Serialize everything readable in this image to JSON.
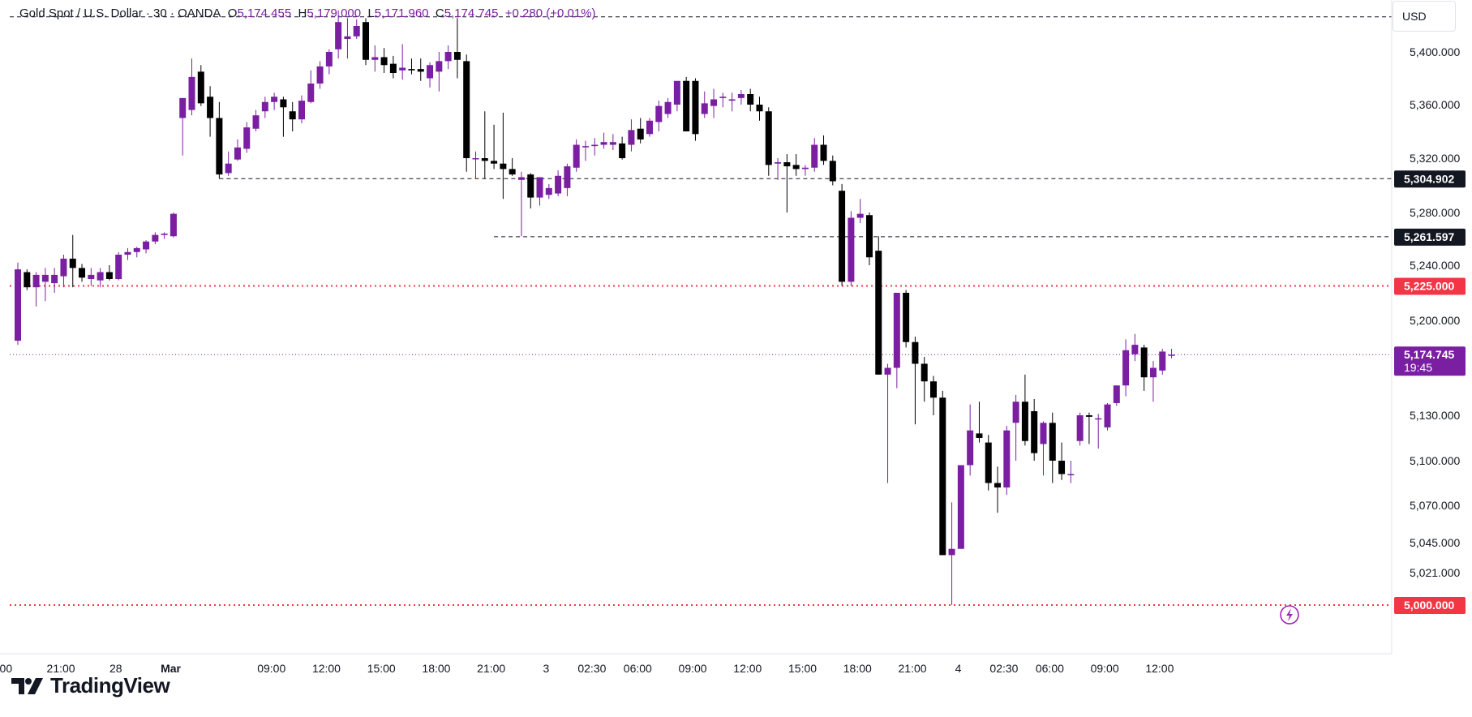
{
  "header": {
    "symbol": "Gold Spot / U.S. Dollar · 30 · OANDA",
    "open_label": "O",
    "open": "5,174.455",
    "high_label": "H",
    "high": "5,179.000",
    "low_label": "L",
    "low": "5,171.960",
    "close_label": "C",
    "close": "5,174.745",
    "change": "+0.280 (+0.01%)"
  },
  "currency_button": "USD",
  "brand": {
    "name": "TradingView"
  },
  "colors": {
    "up": "#7b1fa2",
    "down": "#000000",
    "alert_line": "#f23645",
    "current_price": "#7b1fa2",
    "axis_text": "#131722",
    "grid": "#e0e3eb"
  },
  "chart_data": {
    "type": "candlestick",
    "title": "Gold Spot / U.S. Dollar",
    "interval": "30",
    "source": "OANDA",
    "currency": "USD",
    "grid": false,
    "y_ticks": [
      {
        "value": 5400,
        "label": "5,400.000"
      },
      {
        "value": 5360,
        "label": "5,360.000"
      },
      {
        "value": 5320,
        "label": "5,320.000"
      },
      {
        "value": 5280,
        "label": "5,280.000"
      },
      {
        "value": 5240,
        "label": "5,240.000"
      },
      {
        "value": 5200,
        "label": "5,200.000"
      },
      {
        "value": 5130,
        "label": "5,130.000"
      },
      {
        "value": 5100,
        "label": "5,100.000"
      },
      {
        "value": 5070,
        "label": "5,070.000"
      },
      {
        "value": 5045,
        "label": "5,045.000"
      },
      {
        "value": 5021,
        "label": "5,021.000"
      }
    ],
    "x_ticks": [
      {
        "bar": -1.3,
        "label": "00",
        "bold": false
      },
      {
        "bar": 4.7,
        "label": "21:00",
        "bold": false
      },
      {
        "bar": 10.7,
        "label": "28",
        "bold": false
      },
      {
        "bar": 16.7,
        "label": "Mar",
        "bold": true
      },
      {
        "bar": 27.7,
        "label": "09:00",
        "bold": false
      },
      {
        "bar": 33.7,
        "label": "12:00",
        "bold": false
      },
      {
        "bar": 39.7,
        "label": "15:00",
        "bold": false
      },
      {
        "bar": 45.7,
        "label": "18:00",
        "bold": false
      },
      {
        "bar": 51.7,
        "label": "21:00",
        "bold": false
      },
      {
        "bar": 57.7,
        "label": "3",
        "bold": false
      },
      {
        "bar": 62.7,
        "label": "02:30",
        "bold": false
      },
      {
        "bar": 67.7,
        "label": "06:00",
        "bold": false
      },
      {
        "bar": 73.7,
        "label": "09:00",
        "bold": false
      },
      {
        "bar": 79.7,
        "label": "12:00",
        "bold": false
      },
      {
        "bar": 85.7,
        "label": "15:00",
        "bold": false
      },
      {
        "bar": 91.7,
        "label": "18:00",
        "bold": false
      },
      {
        "bar": 97.7,
        "label": "21:00",
        "bold": false
      },
      {
        "bar": 102.7,
        "label": "4",
        "bold": false
      },
      {
        "bar": 107.7,
        "label": "02:30",
        "bold": false
      },
      {
        "bar": 112.7,
        "label": "06:00",
        "bold": false
      },
      {
        "bar": 118.7,
        "label": "09:00",
        "bold": false
      },
      {
        "bar": 124.7,
        "label": "12:00",
        "bold": false
      }
    ],
    "price_labels": [
      {
        "value": 5304.902,
        "label": "5,304.902",
        "style": "dark"
      },
      {
        "value": 5261.597,
        "label": "5,261.597",
        "style": "dark"
      },
      {
        "value": 5225.0,
        "label": "5,225.000",
        "style": "alert"
      },
      {
        "value": 5174.745,
        "label": "5,174.745",
        "sub": "19:45",
        "style": "current"
      },
      {
        "value": 5000.0,
        "label": "5,000.000",
        "style": "alert"
      }
    ],
    "horizontal_lines": [
      {
        "value": 5427,
        "from_bar": -1,
        "style": "dashed"
      },
      {
        "value": 5304.902,
        "from_bar": 22,
        "style": "dashed"
      },
      {
        "value": 5261.597,
        "from_bar": 52,
        "style": "dashed"
      },
      {
        "value": 5225.0,
        "from_bar": -1,
        "style": "alert"
      },
      {
        "value": 5174.745,
        "from_bar": -1,
        "style": "current"
      },
      {
        "value": 5000.0,
        "from_bar": -1,
        "style": "alert"
      }
    ],
    "ohlc": [
      [
        5185,
        5242,
        5182,
        5237
      ],
      [
        5235,
        5237,
        5222,
        5224
      ],
      [
        5224,
        5235,
        5210,
        5233
      ],
      [
        5228,
        5238,
        5214,
        5233
      ],
      [
        5227,
        5238,
        5220,
        5233
      ],
      [
        5232,
        5248,
        5224,
        5245
      ],
      [
        5245,
        5263,
        5224,
        5238
      ],
      [
        5238,
        5241,
        5228,
        5231
      ],
      [
        5230,
        5238,
        5225,
        5233
      ],
      [
        5229,
        5238,
        5224,
        5235
      ],
      [
        5235,
        5240,
        5229,
        5230
      ],
      [
        5230,
        5250,
        5229,
        5248
      ],
      [
        5248,
        5253,
        5244,
        5250
      ],
      [
        5250,
        5254,
        5246,
        5253
      ],
      [
        5252,
        5259,
        5249,
        5258
      ],
      [
        5258,
        5265,
        5256,
        5263
      ],
      [
        5263,
        5265,
        5260,
        5264
      ],
      [
        5262,
        5280,
        5261,
        5279
      ],
      [
        5350,
        5365,
        5322,
        5365
      ],
      [
        5356,
        5395,
        5352,
        5381
      ],
      [
        5385,
        5390,
        5359,
        5361
      ],
      [
        5366,
        5374,
        5336,
        5350
      ],
      [
        5350,
        5362,
        5305,
        5308
      ],
      [
        5309,
        5325,
        5307,
        5316
      ],
      [
        5319,
        5334,
        5318,
        5328
      ],
      [
        5327,
        5347,
        5324,
        5343
      ],
      [
        5342,
        5356,
        5340,
        5352
      ],
      [
        5355,
        5366,
        5350,
        5362
      ],
      [
        5362,
        5369,
        5356,
        5366
      ],
      [
        5364,
        5366,
        5336,
        5358
      ],
      [
        5355,
        5362,
        5340,
        5349
      ],
      [
        5349,
        5367,
        5346,
        5363
      ],
      [
        5362,
        5386,
        5361,
        5376
      ],
      [
        5376,
        5393,
        5372,
        5389
      ],
      [
        5389,
        5402,
        5383,
        5400
      ],
      [
        5402,
        5432,
        5395,
        5423
      ],
      [
        5410,
        5426,
        5395,
        5412
      ],
      [
        5412,
        5425,
        5410,
        5420
      ],
      [
        5423,
        5426,
        5390,
        5394
      ],
      [
        5394,
        5405,
        5385,
        5396
      ],
      [
        5396,
        5403,
        5384,
        5390
      ],
      [
        5391,
        5397,
        5380,
        5384
      ],
      [
        5386,
        5406,
        5379,
        5388
      ],
      [
        5387,
        5395,
        5383,
        5386
      ],
      [
        5387,
        5395,
        5378,
        5385
      ],
      [
        5380,
        5392,
        5373,
        5390
      ],
      [
        5385,
        5400,
        5370,
        5393
      ],
      [
        5393,
        5405,
        5387,
        5400
      ],
      [
        5400,
        5426,
        5380,
        5394
      ],
      [
        5393,
        5398,
        5310,
        5320
      ],
      [
        5320,
        5325,
        5305,
        5320
      ],
      [
        5320,
        5355,
        5305,
        5318
      ],
      [
        5318,
        5345,
        5312,
        5316
      ],
      [
        5316,
        5354,
        5290,
        5312
      ],
      [
        5312,
        5320,
        5307,
        5308
      ],
      [
        5304,
        5310,
        5262,
        5306
      ],
      [
        5308,
        5309,
        5283,
        5291
      ],
      [
        5291,
        5306,
        5285,
        5306
      ],
      [
        5293,
        5301,
        5290,
        5298
      ],
      [
        5294,
        5311,
        5292,
        5307
      ],
      [
        5298,
        5316,
        5292,
        5314
      ],
      [
        5313,
        5334,
        5310,
        5330
      ],
      [
        5329,
        5333,
        5318,
        5329
      ],
      [
        5329,
        5335,
        5322,
        5330
      ],
      [
        5330,
        5339,
        5327,
        5332
      ],
      [
        5330,
        5338,
        5326,
        5332
      ],
      [
        5331,
        5336,
        5319,
        5320
      ],
      [
        5330,
        5349,
        5325,
        5341
      ],
      [
        5342,
        5350,
        5331,
        5334
      ],
      [
        5338,
        5350,
        5336,
        5348
      ],
      [
        5347,
        5363,
        5340,
        5359
      ],
      [
        5353,
        5365,
        5350,
        5362
      ],
      [
        5360,
        5375,
        5355,
        5378
      ],
      [
        5378,
        5381,
        5340,
        5340
      ],
      [
        5378,
        5380,
        5333,
        5338
      ],
      [
        5353,
        5370,
        5350,
        5361
      ],
      [
        5359,
        5372,
        5350,
        5364
      ],
      [
        5365,
        5369,
        5358,
        5366
      ],
      [
        5363,
        5369,
        5355,
        5364
      ],
      [
        5365,
        5371,
        5360,
        5368
      ],
      [
        5368,
        5372,
        5355,
        5360
      ],
      [
        5360,
        5366,
        5348,
        5355
      ],
      [
        5355,
        5358,
        5307,
        5315
      ],
      [
        5316,
        5320,
        5304,
        5317
      ],
      [
        5317,
        5323,
        5280,
        5314
      ],
      [
        5315,
        5323,
        5307,
        5312
      ],
      [
        5312,
        5315,
        5307,
        5313
      ],
      [
        5313,
        5335,
        5310,
        5330
      ],
      [
        5330,
        5337,
        5315,
        5318
      ],
      [
        5318,
        5322,
        5300,
        5303
      ],
      [
        5296,
        5301,
        5225,
        5228
      ],
      [
        5228,
        5281,
        5225,
        5276
      ],
      [
        5276,
        5290,
        5272,
        5279
      ],
      [
        5278,
        5280,
        5240,
        5246
      ],
      [
        5251,
        5262,
        5160,
        5160
      ],
      [
        5160,
        5168,
        5085,
        5165
      ],
      [
        5165,
        5220,
        5150,
        5220
      ],
      [
        5220,
        5222,
        5180,
        5184
      ],
      [
        5184,
        5188,
        5124,
        5168
      ],
      [
        5168,
        5173,
        5140,
        5155
      ],
      [
        5155,
        5159,
        5130,
        5143
      ],
      [
        5143,
        5148,
        5035,
        5035
      ],
      [
        5035,
        5072,
        5000,
        5040
      ],
      [
        5040,
        5097,
        5040,
        5097
      ],
      [
        5097,
        5138,
        5090,
        5120
      ],
      [
        5118,
        5140,
        5112,
        5115
      ],
      [
        5112,
        5117,
        5080,
        5085
      ],
      [
        5085,
        5096,
        5065,
        5082
      ],
      [
        5082,
        5123,
        5077,
        5120
      ],
      [
        5125,
        5145,
        5100,
        5140
      ],
      [
        5140,
        5160,
        5110,
        5113
      ],
      [
        5133,
        5142,
        5100,
        5105
      ],
      [
        5111,
        5126,
        5090,
        5125
      ],
      [
        5125,
        5132,
        5085,
        5100
      ],
      [
        5100,
        5112,
        5087,
        5091
      ],
      [
        5091,
        5100,
        5085,
        5091
      ],
      [
        5113,
        5132,
        5110,
        5130
      ],
      [
        5130,
        5132,
        5111,
        5129
      ],
      [
        5128,
        5131,
        5108,
        5128
      ],
      [
        5122,
        5139,
        5120,
        5138
      ],
      [
        5139,
        5152,
        5137,
        5152
      ],
      [
        5152,
        5186,
        5144,
        5178
      ],
      [
        5175,
        5190,
        5170,
        5182
      ],
      [
        5180,
        5182,
        5148,
        5158
      ],
      [
        5158,
        5170,
        5140,
        5165
      ],
      [
        5163,
        5179,
        5160,
        5177
      ],
      [
        5174.455,
        5179.0,
        5171.96,
        5174.745
      ]
    ]
  }
}
